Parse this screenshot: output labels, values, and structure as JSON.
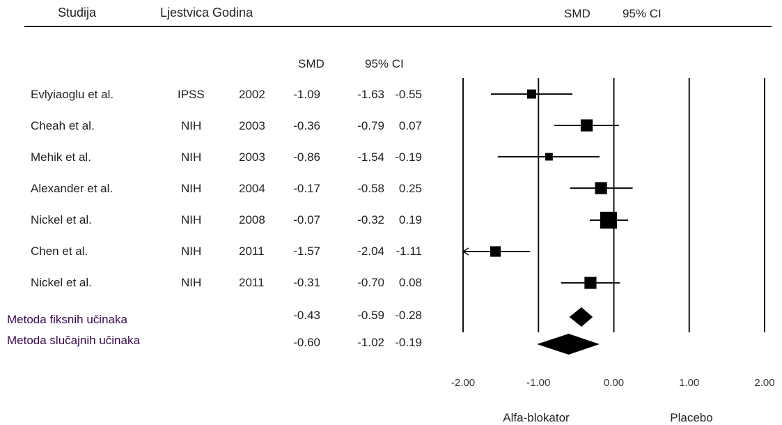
{
  "header": {
    "studija": "Studija",
    "ljestvica_godina": "Ljestvica Godina",
    "smd": "SMD",
    "ci": "95% CI"
  },
  "table_header": {
    "smd": "SMD",
    "ci": "95% CI"
  },
  "studies": [
    {
      "name": "Evlyiaoglu et al.",
      "scale": "IPSS",
      "year": "2002",
      "smd": "-1.09",
      "lo": "-1.63",
      "hi": "-0.55"
    },
    {
      "name": "Cheah et al.",
      "scale": "NIH",
      "year": "2003",
      "smd": "-0.36",
      "lo": "-0.79",
      "hi": "0.07"
    },
    {
      "name": "Mehik et al.",
      "scale": "NIH",
      "year": "2003",
      "smd": "-0.86",
      "lo": "-1.54",
      "hi": "-0.19"
    },
    {
      "name": "Alexander et al.",
      "scale": "NIH",
      "year": "2004",
      "smd": "-0.17",
      "lo": "-0.58",
      "hi": "0.25"
    },
    {
      "name": "Nickel et al.",
      "scale": "NIH",
      "year": "2008",
      "smd": "-0.07",
      "lo": "-0.32",
      "hi": "0.19"
    },
    {
      "name": "Chen et al.",
      "scale": "NIH",
      "year": "2011",
      "smd": "-1.57",
      "lo": "-2.04",
      "hi": "-1.11"
    },
    {
      "name": "Nickel et al.",
      "scale": "NIH",
      "year": "2011",
      "smd": "-0.31",
      "lo": "-0.70",
      "hi": "0.08"
    }
  ],
  "pooled": [
    {
      "name": "Metoda fiksnih učinaka",
      "smd": "-0.43",
      "lo": "-0.59",
      "hi": "-0.28"
    },
    {
      "name": "Metoda slučajnih učinaka",
      "smd": "-0.60",
      "lo": "-1.02",
      "hi": "-0.19"
    }
  ],
  "chart_data": {
    "type": "scatter",
    "subtype": "forest-plot",
    "xlim": [
      -2,
      2
    ],
    "ticks": [
      "-2.00",
      "-1.00",
      "0.00",
      "1.00",
      "2.00"
    ],
    "tick_values": [
      -2,
      -1,
      0,
      1,
      2
    ],
    "x_labels": {
      "left": "Alfa-blokator",
      "right": "Placebo"
    },
    "studies": [
      {
        "smd": -1.09,
        "lo": -1.63,
        "hi": -0.55,
        "weight": 1.0
      },
      {
        "smd": -0.36,
        "lo": -0.79,
        "hi": 0.07,
        "weight": 1.6
      },
      {
        "smd": -0.86,
        "lo": -1.54,
        "hi": -0.19,
        "weight": 0.7
      },
      {
        "smd": -0.17,
        "lo": -0.58,
        "hi": 0.25,
        "weight": 1.6
      },
      {
        "smd": -0.07,
        "lo": -0.32,
        "hi": 0.19,
        "weight": 2.6
      },
      {
        "smd": -1.57,
        "lo": -2.04,
        "hi": -1.11,
        "weight": 1.3
      },
      {
        "smd": -0.31,
        "lo": -0.7,
        "hi": 0.08,
        "weight": 1.6
      }
    ],
    "pooled": [
      {
        "smd": -0.43,
        "lo": -0.59,
        "hi": -0.28
      },
      {
        "smd": -0.6,
        "lo": -1.02,
        "hi": -0.19
      }
    ],
    "grid": true
  }
}
